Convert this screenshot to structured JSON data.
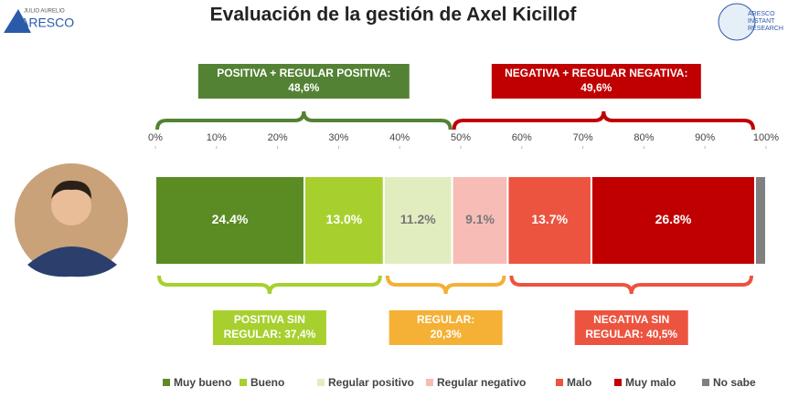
{
  "chart_data": {
    "type": "stacked-bar",
    "orientation": "horizontal",
    "title": "Evaluación de la gestión de Axel Kicillof",
    "logo_left": [
      "JULIO AURELIO",
      "ARESCO"
    ],
    "logo_right": [
      "ARESCO",
      "INSTANT",
      "RESEARCH"
    ],
    "xlim": [
      0,
      100
    ],
    "xticks": [
      {
        "value": 0,
        "label": "0%"
      },
      {
        "value": 10,
        "label": "10%"
      },
      {
        "value": 20,
        "label": "20%"
      },
      {
        "value": 30,
        "label": "30%"
      },
      {
        "value": 40,
        "label": "40%"
      },
      {
        "value": 50,
        "label": "50%"
      },
      {
        "value": 60,
        "label": "60%"
      },
      {
        "value": 70,
        "label": "70%"
      },
      {
        "value": 80,
        "label": "80%"
      },
      {
        "value": 90,
        "label": "90%"
      },
      {
        "value": 100,
        "label": "100%"
      }
    ],
    "series": [
      {
        "name": "Muy bueno",
        "color": "#5b8c24",
        "values": [
          24.4
        ],
        "value_labels": [
          "24.4%"
        ]
      },
      {
        "name": "Bueno",
        "color": "#a7d02f",
        "values": [
          13.0
        ],
        "value_labels": [
          "13.0%"
        ]
      },
      {
        "name": "Regular positivo",
        "color": "#e1edbf",
        "values": [
          11.2
        ],
        "value_labels": [
          "11.2%"
        ]
      },
      {
        "name": "Regular negativo",
        "color": "#f7bcb6",
        "values": [
          9.1
        ],
        "value_labels": [
          "9.1%"
        ]
      },
      {
        "name": "Malo",
        "color": "#ec5440",
        "values": [
          13.7
        ],
        "value_labels": [
          "13.7%"
        ]
      },
      {
        "name": "Muy malo",
        "color": "#c00000",
        "values": [
          26.8
        ],
        "value_labels": [
          "26.8%"
        ]
      },
      {
        "name": "No sabe",
        "color": "#808080",
        "values": [
          1.8
        ],
        "value_labels": [
          null
        ]
      }
    ],
    "annotations_top": [
      {
        "lines": [
          "POSITIVA + REGULAR POSITIVA:",
          "48,6%"
        ],
        "color": "#548235"
      },
      {
        "lines": [
          "NEGATIVA + REGULAR NEGATIVA:",
          "49,6%"
        ],
        "color": "#c00000"
      }
    ],
    "annotations_bottom": [
      {
        "lines": [
          "POSITIVA SIN",
          "REGULAR: 37,4%"
        ],
        "color": "#a7d02f"
      },
      {
        "lines": [
          "REGULAR:",
          "20,3%"
        ],
        "color": "#f4b136"
      },
      {
        "lines": [
          "NEGATIVA SIN",
          "REGULAR: 40,5%"
        ],
        "color": "#ec5440"
      }
    ]
  }
}
